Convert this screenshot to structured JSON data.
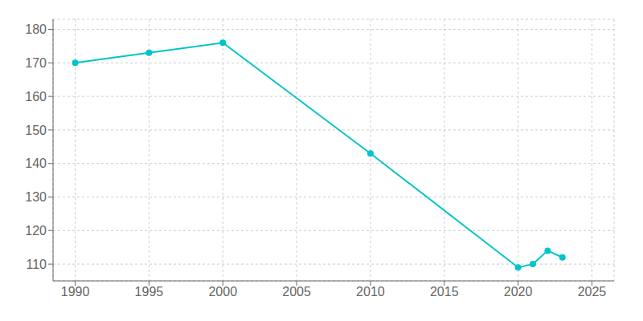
{
  "chart_data": {
    "type": "line",
    "x": [
      1990,
      1995,
      2000,
      2010,
      2020,
      2021,
      2022,
      2023
    ],
    "values": [
      170,
      173,
      176,
      143,
      109,
      110,
      114,
      112
    ],
    "color": "#00c5c8",
    "marker": "circle",
    "xlim": [
      1988.5,
      2026.5
    ],
    "ylim": [
      105,
      183
    ],
    "xticks": [
      1990,
      1995,
      2000,
      2005,
      2010,
      2015,
      2020,
      2025
    ],
    "yticks": [
      110,
      120,
      130,
      140,
      150,
      160,
      170,
      180
    ],
    "grid": true
  }
}
